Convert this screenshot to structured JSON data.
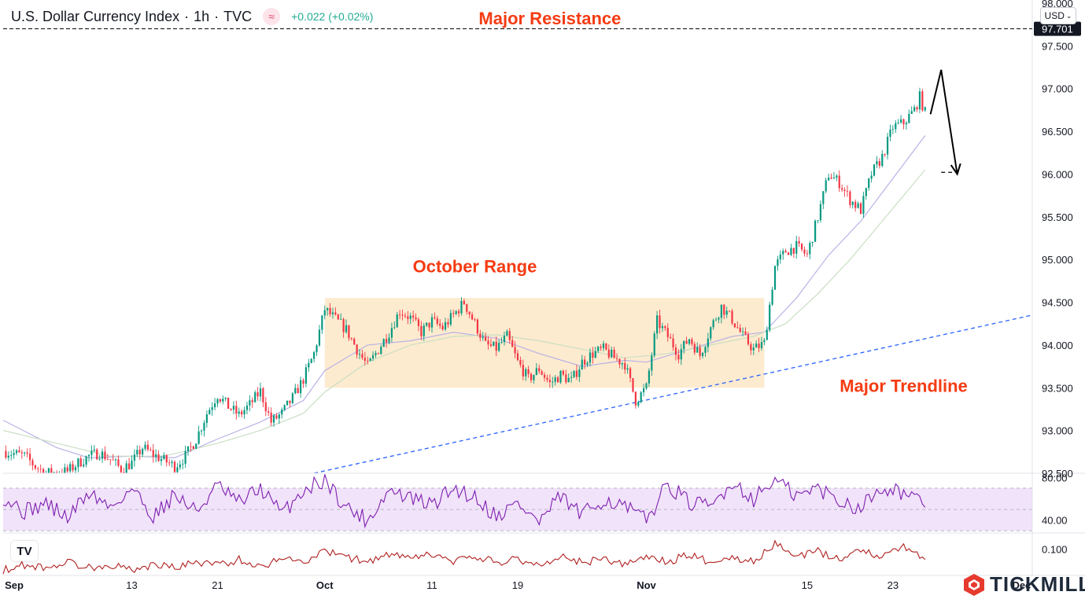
{
  "header": {
    "title": "U.S. Dollar Currency Index",
    "interval": "1h",
    "source": "TVC",
    "change": "+0.022 (+0.02%)",
    "currency": "USD",
    "currency_chevron": "chevron-down-icon",
    "indicator_icon": "waves-icon"
  },
  "branding": {
    "logo_text": "TICKMILL",
    "platform_mark": "tradingview-icon",
    "platform_mark_text": "TV"
  },
  "chart_data": [
    {
      "type": "line",
      "subtype": "candlestick",
      "y_axis_ticks": [
        "98.000",
        "97.500",
        "97.000",
        "96.500",
        "96.000",
        "95.500",
        "95.000",
        "94.500",
        "94.000",
        "93.500",
        "93.000",
        "92.500"
      ],
      "ylim": [
        92.5,
        98.0
      ],
      "price_label": "97.701",
      "x_axis_ticks": [
        "Sep",
        "13",
        "21",
        "Oct",
        "11",
        "19",
        "Nov",
        "15",
        "23",
        "Dec"
      ],
      "x_domain_days": [
        0,
        96
      ],
      "x_tick_days": [
        0,
        12,
        20,
        30,
        40,
        48,
        60,
        75,
        83,
        95
      ],
      "x_tick_bold": [
        "Sep",
        "Oct",
        "Nov",
        "Dec"
      ],
      "series": [
        {
          "values": [
            [
              0,
              92.76
            ],
            [
              2,
              92.7
            ],
            [
              3,
              92.58
            ],
            [
              4,
              92.5
            ],
            [
              6,
              92.52
            ],
            [
              7,
              92.62
            ],
            [
              8,
              92.7
            ],
            [
              9,
              92.74
            ],
            [
              10,
              92.66
            ],
            [
              11,
              92.55
            ],
            [
              12,
              92.62
            ],
            [
              13,
              92.8
            ],
            [
              14,
              92.72
            ],
            [
              15,
              92.65
            ],
            [
              16,
              92.58
            ],
            [
              17,
              92.7
            ],
            [
              18,
              92.9
            ],
            [
              19,
              93.2
            ],
            [
              20,
              93.42
            ],
            [
              21,
              93.28
            ],
            [
              22,
              93.18
            ],
            [
              23,
              93.3
            ],
            [
              24,
              93.46
            ],
            [
              25,
              93.1
            ],
            [
              26,
              93.2
            ],
            [
              27,
              93.38
            ],
            [
              28,
              93.6
            ],
            [
              29,
              93.9
            ],
            [
              30,
              94.42
            ],
            [
              31,
              94.3
            ],
            [
              32,
              94.18
            ],
            [
              33,
              93.95
            ],
            [
              34,
              93.75
            ],
            [
              35,
              93.95
            ],
            [
              36,
              94.15
            ],
            [
              37,
              94.4
            ],
            [
              38,
              94.32
            ],
            [
              39,
              94.15
            ],
            [
              40,
              94.28
            ],
            [
              41,
              94.2
            ],
            [
              42,
              94.35
            ],
            [
              43,
              94.5
            ],
            [
              44,
              94.25
            ],
            [
              45,
              94.0
            ],
            [
              46,
              93.96
            ],
            [
              47,
              94.1
            ],
            [
              48,
              93.8
            ],
            [
              49,
              93.6
            ],
            [
              50,
              93.72
            ],
            [
              51,
              93.55
            ],
            [
              52,
              93.65
            ],
            [
              53,
              93.58
            ],
            [
              54,
              93.8
            ],
            [
              55,
              93.9
            ],
            [
              56,
              93.95
            ],
            [
              57,
              93.85
            ],
            [
              58,
              93.78
            ],
            [
              59,
              93.35
            ],
            [
              60,
              93.5
            ],
            [
              61,
              94.28
            ],
            [
              62,
              94.1
            ],
            [
              63,
              93.9
            ],
            [
              64,
              94.08
            ],
            [
              65,
              93.88
            ],
            [
              66,
              94.2
            ],
            [
              67,
              94.45
            ],
            [
              68,
              94.3
            ],
            [
              69,
              94.1
            ],
            [
              70,
              93.95
            ],
            [
              71,
              94.02
            ],
            [
              72,
              94.92
            ],
            [
              73,
              95.1
            ],
            [
              74,
              95.15
            ],
            [
              75,
              95.05
            ],
            [
              76,
              95.5
            ],
            [
              77,
              96.0
            ],
            [
              78,
              95.9
            ],
            [
              79,
              95.7
            ],
            [
              80,
              95.58
            ],
            [
              81,
              96.0
            ],
            [
              82,
              96.2
            ],
            [
              83,
              96.55
            ],
            [
              84,
              96.6
            ],
            [
              85,
              96.75
            ],
            [
              85.5,
              96.9
            ],
            [
              86,
              96.72
            ]
          ]
        }
      ],
      "moving_averages": [
        {
          "color": "#b7b2e6",
          "values": [
            [
              0,
              93.12
            ],
            [
              5,
              92.8
            ],
            [
              8,
              92.68
            ],
            [
              12,
              92.7
            ],
            [
              16,
              92.68
            ],
            [
              20,
              92.9
            ],
            [
              24,
              93.1
            ],
            [
              28,
              93.35
            ],
            [
              30,
              93.7
            ],
            [
              34,
              94.0
            ],
            [
              38,
              94.05
            ],
            [
              42,
              94.15
            ],
            [
              46,
              94.08
            ],
            [
              50,
              93.9
            ],
            [
              54,
              93.75
            ],
            [
              58,
              93.82
            ],
            [
              60,
              93.8
            ],
            [
              64,
              93.95
            ],
            [
              68,
              94.1
            ],
            [
              71,
              94.15
            ],
            [
              74,
              94.55
            ],
            [
              77,
              95.05
            ],
            [
              80,
              95.45
            ],
            [
              83,
              95.95
            ],
            [
              86,
              96.45
            ]
          ]
        },
        {
          "color": "#c9dfc3",
          "values": [
            [
              0,
              93.0
            ],
            [
              5,
              92.85
            ],
            [
              10,
              92.7
            ],
            [
              15,
              92.7
            ],
            [
              20,
              92.85
            ],
            [
              24,
              93.0
            ],
            [
              28,
              93.2
            ],
            [
              30,
              93.45
            ],
            [
              34,
              93.8
            ],
            [
              38,
              94.0
            ],
            [
              42,
              94.1
            ],
            [
              46,
              94.12
            ],
            [
              50,
              94.05
            ],
            [
              54,
              93.95
            ],
            [
              58,
              93.85
            ],
            [
              62,
              93.9
            ],
            [
              66,
              94.0
            ],
            [
              70,
              94.1
            ],
            [
              73,
              94.25
            ],
            [
              76,
              94.6
            ],
            [
              79,
              95.0
            ],
            [
              82,
              95.45
            ],
            [
              86,
              96.05
            ]
          ]
        }
      ],
      "annotations": [
        {
          "type": "hline",
          "style": "dashed",
          "y": 97.7,
          "label": "Major Resistance",
          "label_x": 51,
          "label_y": 97.75
        },
        {
          "type": "box",
          "x": [
            30,
            71
          ],
          "y": [
            93.5,
            94.55
          ],
          "label": "October Range",
          "label_x": 44,
          "label_y": 94.85
        },
        {
          "type": "trendline",
          "style": "dashed",
          "from": [
            29,
            92.5
          ],
          "to": [
            96,
            94.35
          ],
          "label": "Major Trendline",
          "label_x": 84,
          "label_y": 93.45
        },
        {
          "type": "arrow_path",
          "points": [
            [
              86.5,
              96.7
            ],
            [
              87.5,
              97.22
            ],
            [
              89,
              96.0
            ]
          ]
        },
        {
          "type": "hline_segment",
          "style": "dashed",
          "y": 96.02,
          "x": [
            87.5,
            98
          ]
        }
      ]
    },
    {
      "type": "line",
      "name": "RSI",
      "y_axis_ticks": [
        "80.00",
        "40.00"
      ],
      "ylim": [
        28,
        84
      ],
      "band": [
        30,
        70
      ],
      "midline": 50,
      "values": [
        [
          0,
          62
        ],
        [
          2,
          48
        ],
        [
          4,
          56
        ],
        [
          6,
          42
        ],
        [
          8,
          66
        ],
        [
          10,
          52
        ],
        [
          12,
          70
        ],
        [
          14,
          44
        ],
        [
          16,
          64
        ],
        [
          18,
          48
        ],
        [
          20,
          72
        ],
        [
          22,
          56
        ],
        [
          24,
          70
        ],
        [
          26,
          46
        ],
        [
          28,
          68
        ],
        [
          30,
          78
        ],
        [
          32,
          52
        ],
        [
          34,
          40
        ],
        [
          36,
          68
        ],
        [
          38,
          60
        ],
        [
          40,
          54
        ],
        [
          42,
          70
        ],
        [
          44,
          62
        ],
        [
          46,
          44
        ],
        [
          48,
          56
        ],
        [
          50,
          38
        ],
        [
          52,
          62
        ],
        [
          54,
          44
        ],
        [
          56,
          60
        ],
        [
          58,
          52
        ],
        [
          60,
          40
        ],
        [
          62,
          74
        ],
        [
          64,
          56
        ],
        [
          66,
          52
        ],
        [
          68,
          76
        ],
        [
          70,
          60
        ],
        [
          72,
          78
        ],
        [
          74,
          62
        ],
        [
          76,
          70
        ],
        [
          78,
          58
        ],
        [
          80,
          52
        ],
        [
          82,
          72
        ],
        [
          84,
          66
        ],
        [
          86,
          52
        ]
      ]
    },
    {
      "type": "line",
      "name": "Oscillator",
      "y_axis_ticks": [
        "0.100"
      ],
      "ylim": [
        0,
        0.16
      ],
      "values": [
        [
          0,
          0.02
        ],
        [
          2,
          0.04
        ],
        [
          4,
          0.03
        ],
        [
          6,
          0.05
        ],
        [
          8,
          0.03
        ],
        [
          10,
          0.04
        ],
        [
          12,
          0.02
        ],
        [
          14,
          0.04
        ],
        [
          16,
          0.03
        ],
        [
          18,
          0.05
        ],
        [
          20,
          0.04
        ],
        [
          22,
          0.06
        ],
        [
          24,
          0.03
        ],
        [
          26,
          0.07
        ],
        [
          28,
          0.05
        ],
        [
          30,
          0.09
        ],
        [
          32,
          0.07
        ],
        [
          34,
          0.05
        ],
        [
          36,
          0.08
        ],
        [
          38,
          0.06
        ],
        [
          40,
          0.08
        ],
        [
          42,
          0.05
        ],
        [
          44,
          0.07
        ],
        [
          46,
          0.05
        ],
        [
          48,
          0.06
        ],
        [
          50,
          0.04
        ],
        [
          52,
          0.07
        ],
        [
          54,
          0.05
        ],
        [
          56,
          0.06
        ],
        [
          58,
          0.04
        ],
        [
          60,
          0.07
        ],
        [
          62,
          0.05
        ],
        [
          64,
          0.08
        ],
        [
          66,
          0.05
        ],
        [
          68,
          0.07
        ],
        [
          70,
          0.05
        ],
        [
          72,
          0.12
        ],
        [
          74,
          0.07
        ],
        [
          76,
          0.09
        ],
        [
          78,
          0.06
        ],
        [
          80,
          0.1
        ],
        [
          82,
          0.07
        ],
        [
          84,
          0.11
        ],
        [
          86,
          0.06
        ]
      ]
    }
  ],
  "colors": {
    "bull": "#089981",
    "bear": "#f23645",
    "resistance_line": "#000000",
    "trendline": "#2962ff",
    "label_red": "#f53b12",
    "range_fill": "#fdebcf",
    "rsi_line": "#7e1fb0",
    "rsi_band": "#f1e3fa",
    "osc_line": "#b01f1f",
    "price_tag_bg": "#131722",
    "axis_text": "#131722",
    "grid": "#e0e3eb"
  }
}
